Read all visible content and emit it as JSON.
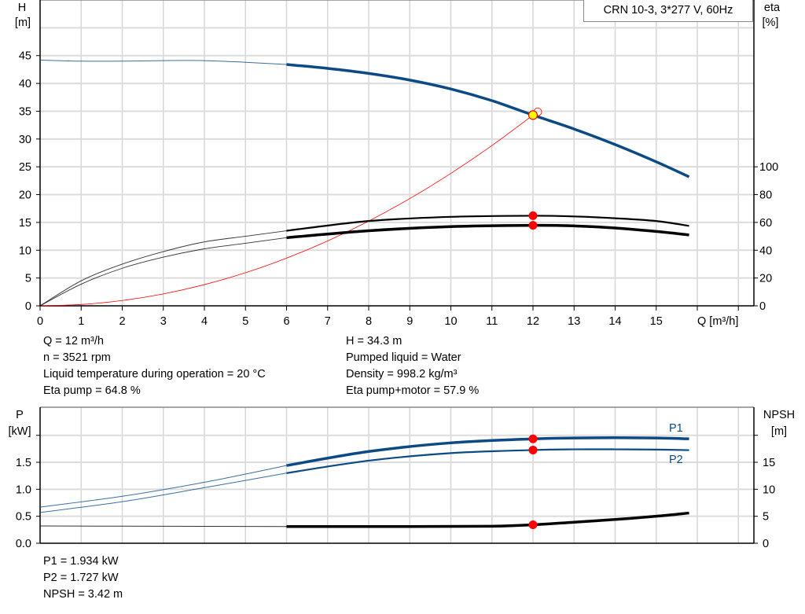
{
  "title": "CRN 10-3, 3*277 V, 60Hz",
  "operating_info": {
    "left": [
      "Q = 12 m³/h",
      "n = 3521 rpm",
      "Liquid temperature during operation = 20 °C",
      "Eta pump = 64.8 %"
    ],
    "right": [
      "H = 34.3 m",
      "Pumped liquid = Water",
      "Density = 998.2 kg/m³",
      "Eta pump+motor = 57.9 %"
    ],
    "power": [
      "P1 = 1.934 kW",
      "P2 = 1.727 kW",
      "NPSH = 3.42 m"
    ]
  },
  "colors": {
    "head": "#0b4a84",
    "efficiency": "#000000",
    "system": "#ff0000",
    "power": "#0b4a84",
    "npsh": "#000000",
    "marker": "#ff0000",
    "operating_point": "#ffff00"
  },
  "chart_data": [
    {
      "type": "line",
      "ylabel": "H",
      "yunit": "[m]",
      "y2label": "eta",
      "y2unit": "[%]",
      "xlabel": "Q [m³/h]",
      "xlim": [
        0,
        17.4
      ],
      "ylim": [
        0,
        55
      ],
      "y2lim": [
        0,
        220
      ],
      "xticks": [
        0,
        1,
        2,
        3,
        4,
        5,
        6,
        7,
        8,
        9,
        10,
        11,
        12,
        13,
        14,
        15
      ],
      "yticks": [
        0,
        5,
        10,
        15,
        20,
        25,
        30,
        35,
        40,
        45
      ],
      "y2ticks": [
        0,
        20,
        40,
        60,
        80,
        100
      ],
      "grid": true,
      "series": [
        {
          "id": "head",
          "axis": "left",
          "x": [
            0,
            1,
            2,
            3,
            4,
            5,
            6,
            7,
            8,
            9,
            10,
            11,
            12,
            13,
            14,
            15,
            15.8
          ],
          "y": [
            44.2,
            44,
            44,
            44.1,
            44.1,
            43.8,
            43.4,
            42.7,
            41.8,
            40.6,
            39,
            36.9,
            34.3,
            31.8,
            29,
            25.9,
            23.2
          ]
        },
        {
          "id": "eta-pump",
          "axis": "right",
          "x": [
            0,
            1,
            2,
            3,
            4,
            5,
            6,
            8,
            10,
            12,
            13,
            14,
            15,
            15.8
          ],
          "y": [
            0,
            18,
            30,
            39,
            46,
            50,
            54,
            61,
            64,
            64.8,
            64.3,
            63,
            61,
            57.5
          ]
        },
        {
          "id": "eta-pump-motor",
          "axis": "right",
          "x": [
            0,
            1,
            2,
            3,
            4,
            5,
            6,
            8,
            10,
            12,
            13,
            14,
            15,
            15.8
          ],
          "y": [
            0,
            15.6,
            27,
            35,
            41,
            45,
            49,
            54,
            57,
            57.9,
            57.5,
            56,
            53.5,
            51
          ]
        },
        {
          "id": "system-curve",
          "axis": "left",
          "x": [
            0,
            1,
            2,
            3,
            4,
            5,
            6,
            7,
            8,
            9,
            10,
            11,
            12
          ],
          "y": [
            0,
            0.24,
            0.95,
            2.14,
            3.81,
            5.95,
            8.58,
            11.67,
            15.24,
            19.29,
            23.82,
            28.82,
            34.3
          ]
        }
      ],
      "duty_point": {
        "q": 12,
        "h": 34.3,
        "eta_pump": 64.8,
        "eta_pump_motor": 57.9
      }
    },
    {
      "type": "line",
      "ylabel": "P",
      "yunit": "[kW]",
      "y2label": "NPSH",
      "y2unit": "[m]",
      "xlim": [
        0,
        17.4
      ],
      "ylim": [
        0,
        2.52
      ],
      "y2lim": [
        0,
        25.2
      ],
      "yticks": [
        "0.0",
        "0.5",
        "1.0",
        "1.5"
      ],
      "y2ticks": [
        0,
        5,
        10,
        15
      ],
      "grid": true,
      "series": [
        {
          "id": "P1",
          "name": "P1",
          "axis": "left",
          "x": [
            0,
            2,
            4,
            6,
            8,
            10,
            12,
            13,
            14,
            15,
            15.8
          ],
          "y": [
            0.67,
            0.87,
            1.13,
            1.44,
            1.7,
            1.86,
            1.934,
            1.95,
            1.955,
            1.95,
            1.935
          ]
        },
        {
          "id": "P2",
          "name": "P2",
          "axis": "left",
          "x": [
            0,
            2,
            4,
            6,
            8,
            10,
            12,
            13,
            14,
            15,
            15.8
          ],
          "y": [
            0.57,
            0.77,
            1.03,
            1.3,
            1.53,
            1.67,
            1.727,
            1.74,
            1.74,
            1.735,
            1.725
          ]
        },
        {
          "id": "NPSH",
          "axis": "right",
          "x": [
            0,
            3,
            6,
            9,
            11,
            12,
            13,
            14,
            15,
            15.8
          ],
          "y": [
            3.2,
            3.15,
            3.1,
            3.1,
            3.15,
            3.42,
            3.9,
            4.4,
            5.0,
            5.6
          ]
        }
      ],
      "duty_point": {
        "q": 12,
        "p1": 1.934,
        "p2": 1.727,
        "npsh": 3.42
      }
    }
  ]
}
